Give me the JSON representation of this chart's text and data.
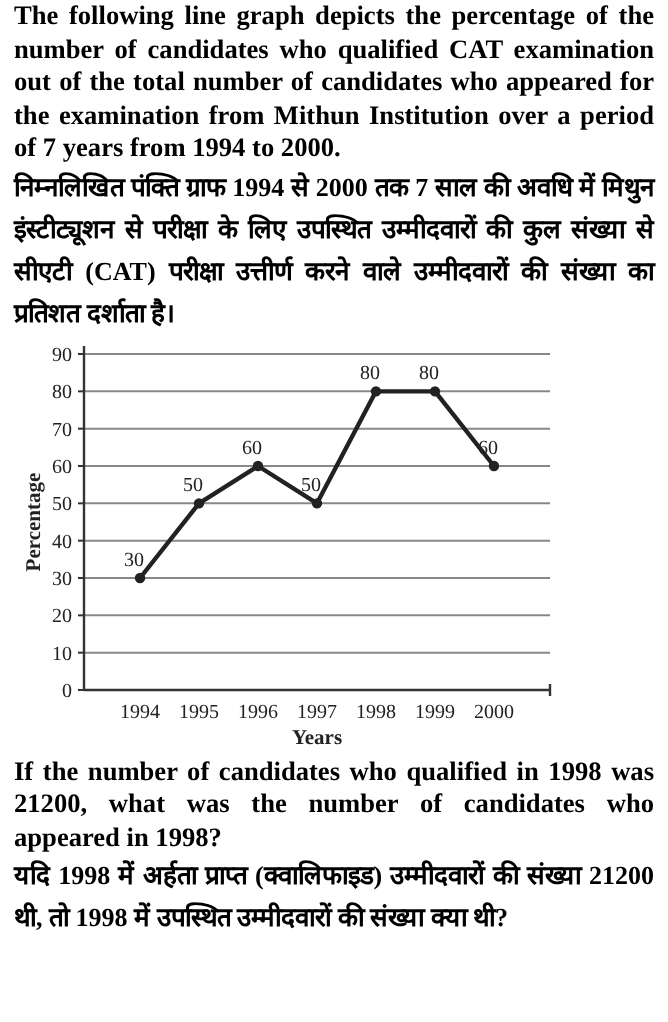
{
  "chart_data": {
    "type": "line",
    "title": "The following line graph depicts the percentage of the number of candidates who qualified CAT examination out of the total number of candidates who appeared for the examination from Mithun Institution over a period of 7 years from 1994 to 2000.",
    "subtitle": "निम्नलिखित पंक्ति ग्राफ 1994 से 2000 तक 7 साल की अवधि में मिथुन इंस्टीट्यूशन से परीक्षा के लिए उपस्थित उम्मीदवारों की कुल संख्या से सीएटी (CAT) परीक्षा उत्तीर्ण करने वाले उम्मीदवारों की संख्या का प्रतिशत दर्शाता है।",
    "annotations": [
      "If the number of candidates who qualified in 1998 was 21200, what was the number of candidates who appeared in 1998?",
      "यदि 1998 में अर्हता प्राप्त (क्वालिफाइड) उम्मीदवारों की संख्या 21200 थी, तो 1998 में उपस्थित उम्मीदवारों की संख्या क्या थी?"
    ],
    "xlabel": "Years",
    "ylabel": "Percentage",
    "categories": [
      "1994",
      "1995",
      "1996",
      "1997",
      "1998",
      "1999",
      "2000"
    ],
    "series": [
      {
        "color": "#222222",
        "values": [
          30,
          50,
          60,
          50,
          80,
          80,
          60
        ]
      }
    ],
    "ylim": [
      0,
      90
    ],
    "yticks": [
      0,
      10,
      20,
      30,
      40,
      50,
      60,
      70,
      80,
      90
    ],
    "grid": "y",
    "marker": "circle",
    "line_style": "solid",
    "data_labels": true
  }
}
